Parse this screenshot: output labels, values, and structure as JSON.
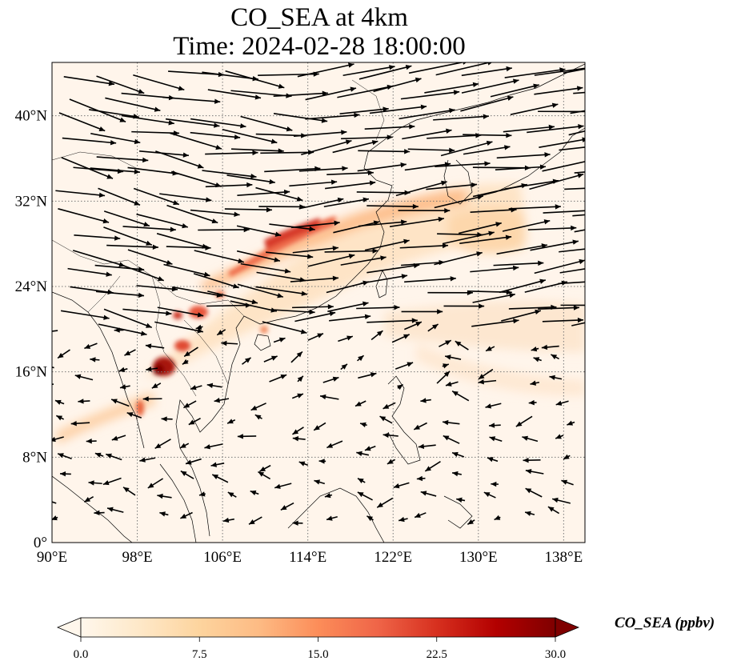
{
  "title": {
    "line1": "CO_SEA at 4km",
    "line2": "Time: 2024-02-28 18:00:00"
  },
  "map": {
    "variable": "CO_SEA",
    "height": "4km",
    "lon_range": [
      90,
      140
    ],
    "lat_range": [
      0,
      45
    ],
    "lon_ticks": [
      "90°E",
      "98°E",
      "106°E",
      "114°E",
      "122°E",
      "130°E",
      "138°E"
    ],
    "lon_tick_values": [
      90,
      98,
      106,
      114,
      122,
      130,
      138
    ],
    "lat_ticks": [
      "0°",
      "8°N",
      "16°N",
      "24°N",
      "32°N",
      "40°N"
    ],
    "lat_tick_values": [
      0,
      8,
      16,
      24,
      32,
      40
    ],
    "gridlines": true,
    "gridline_style": "dotted",
    "background_color": "#fff5eb",
    "features": [
      "coastlines",
      "country borders",
      "wind vectors (black arrows)",
      "CO_SEA shading"
    ]
  },
  "colorbar": {
    "label": "CO_SEA (ppbv)",
    "ticks": [
      "0.0",
      "7.5",
      "15.0",
      "22.5",
      "30.0"
    ],
    "tick_values": [
      0,
      7.5,
      15,
      22.5,
      30
    ],
    "range": [
      0,
      30
    ],
    "extend": "both",
    "colormap": "OrRd",
    "colors": [
      "#fff7ec",
      "#fee8c8",
      "#fdd49e",
      "#fdbb84",
      "#fc8d59",
      "#ef6548",
      "#d7301f",
      "#b30000",
      "#7f0000"
    ]
  }
}
